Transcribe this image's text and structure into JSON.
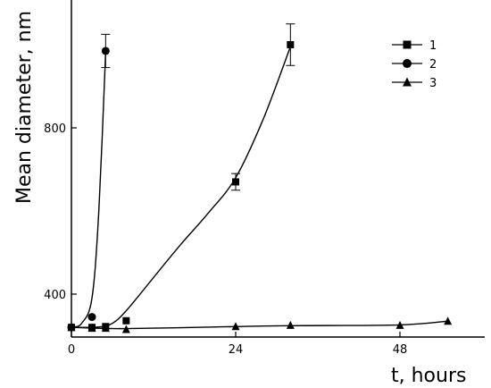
{
  "chart_data": {
    "type": "scatter",
    "xlabel": "t, hours",
    "ylabel": "Mean diameter, nm",
    "xlim": [
      0,
      60
    ],
    "ylim": [
      310,
      1000
    ],
    "xticks": [
      0,
      24,
      48
    ],
    "yticks": [
      400,
      800
    ],
    "legend_position": "top-right",
    "grid": false,
    "series": [
      {
        "name": "1",
        "marker": "square",
        "points": [
          {
            "x": 0,
            "y": 320
          },
          {
            "x": 3,
            "y": 320
          },
          {
            "x": 5,
            "y": 322
          },
          {
            "x": 8,
            "y": 336
          },
          {
            "x": 24,
            "y": 670,
            "err": 20
          },
          {
            "x": 32,
            "y": 1000,
            "err": 50
          }
        ],
        "fit_curve": [
          {
            "x": 0,
            "y": 320
          },
          {
            "x": 4,
            "y": 321
          },
          {
            "x": 6,
            "y": 330
          },
          {
            "x": 8,
            "y": 360
          },
          {
            "x": 12,
            "y": 440
          },
          {
            "x": 16,
            "y": 520
          },
          {
            "x": 20,
            "y": 595
          },
          {
            "x": 24,
            "y": 680
          },
          {
            "x": 28,
            "y": 820
          },
          {
            "x": 32,
            "y": 995
          }
        ]
      },
      {
        "name": "2",
        "marker": "circle",
        "points": [
          {
            "x": 0,
            "y": 320
          },
          {
            "x": 3,
            "y": 345
          },
          {
            "x": 5,
            "y": 985,
            "err": 40
          }
        ],
        "fit_curve": [
          {
            "x": 0,
            "y": 320
          },
          {
            "x": 1.5,
            "y": 330
          },
          {
            "x": 3,
            "y": 390
          },
          {
            "x": 4,
            "y": 600
          },
          {
            "x": 5,
            "y": 980
          }
        ]
      },
      {
        "name": "3",
        "marker": "triangle",
        "points": [
          {
            "x": 0,
            "y": 320
          },
          {
            "x": 3,
            "y": 318
          },
          {
            "x": 5,
            "y": 318
          },
          {
            "x": 8,
            "y": 315
          },
          {
            "x": 24,
            "y": 322
          },
          {
            "x": 32,
            "y": 325
          },
          {
            "x": 48,
            "y": 325
          },
          {
            "x": 55,
            "y": 335
          }
        ],
        "fit_curve": [
          {
            "x": 0,
            "y": 320
          },
          {
            "x": 8,
            "y": 317
          },
          {
            "x": 24,
            "y": 322
          },
          {
            "x": 32,
            "y": 324
          },
          {
            "x": 48,
            "y": 326
          },
          {
            "x": 55,
            "y": 335
          }
        ]
      }
    ]
  }
}
